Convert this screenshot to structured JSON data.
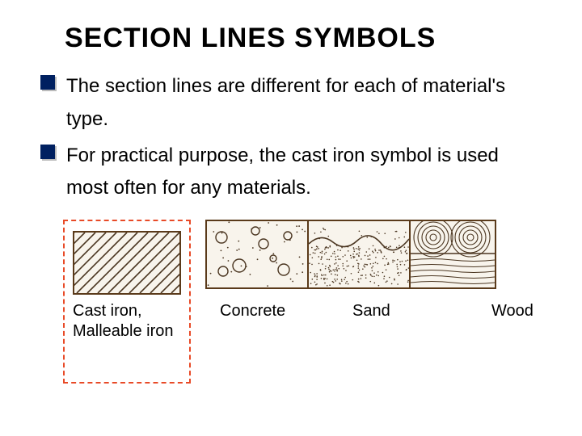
{
  "title": "SECTION  LINES  SYMBOLS",
  "bullets": [
    "The section lines are different for each of material's type.",
    "For practical purpose, the cast iron symbol is used most often for any materials."
  ],
  "colors": {
    "bullet_square": "#002060",
    "dashed_border": "#e84a27",
    "swatch_border": "#5a3a1a",
    "swatch_bg": "#f8f4ec",
    "hatch_stroke": "#4a3520",
    "dot_fill": "#4a3520"
  },
  "swatches": {
    "cast_iron": {
      "label": "Cast iron,\nMalleable iron",
      "width": 130,
      "height": 75,
      "type": "diagonal-hatch"
    },
    "concrete": {
      "label": "Concrete",
      "width": 124,
      "height": 82,
      "type": "concrete"
    },
    "sand": {
      "label": "Sand",
      "width": 124,
      "height": 82,
      "type": "sand"
    },
    "wood": {
      "label": "Wood",
      "width": 104,
      "height": 82,
      "type": "wood"
    }
  },
  "label_offsets": {
    "concrete": 18,
    "sand": 40,
    "wood": 48
  }
}
